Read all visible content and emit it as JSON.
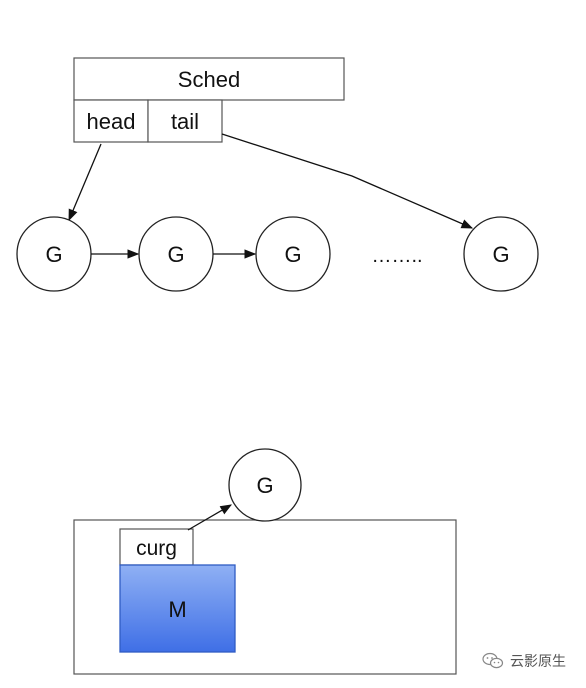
{
  "sched": {
    "title": "Sched",
    "head_label": "head",
    "tail_label": "tail"
  },
  "queue": {
    "nodes": [
      "G",
      "G",
      "G",
      "G"
    ],
    "ellipsis": "……..",
    "colors": {
      "stroke": "#222222",
      "arrow": "#111111"
    }
  },
  "machine": {
    "curg_label": "curg",
    "m_label": "M",
    "current_g": "G",
    "colors": {
      "m_gradient_top": "#8fb0f4",
      "m_gradient_bottom": "#3f6fe6",
      "m_border": "#2f5cc4"
    }
  },
  "watermark": {
    "text": "云影原生",
    "icon": "wechat-icon"
  }
}
